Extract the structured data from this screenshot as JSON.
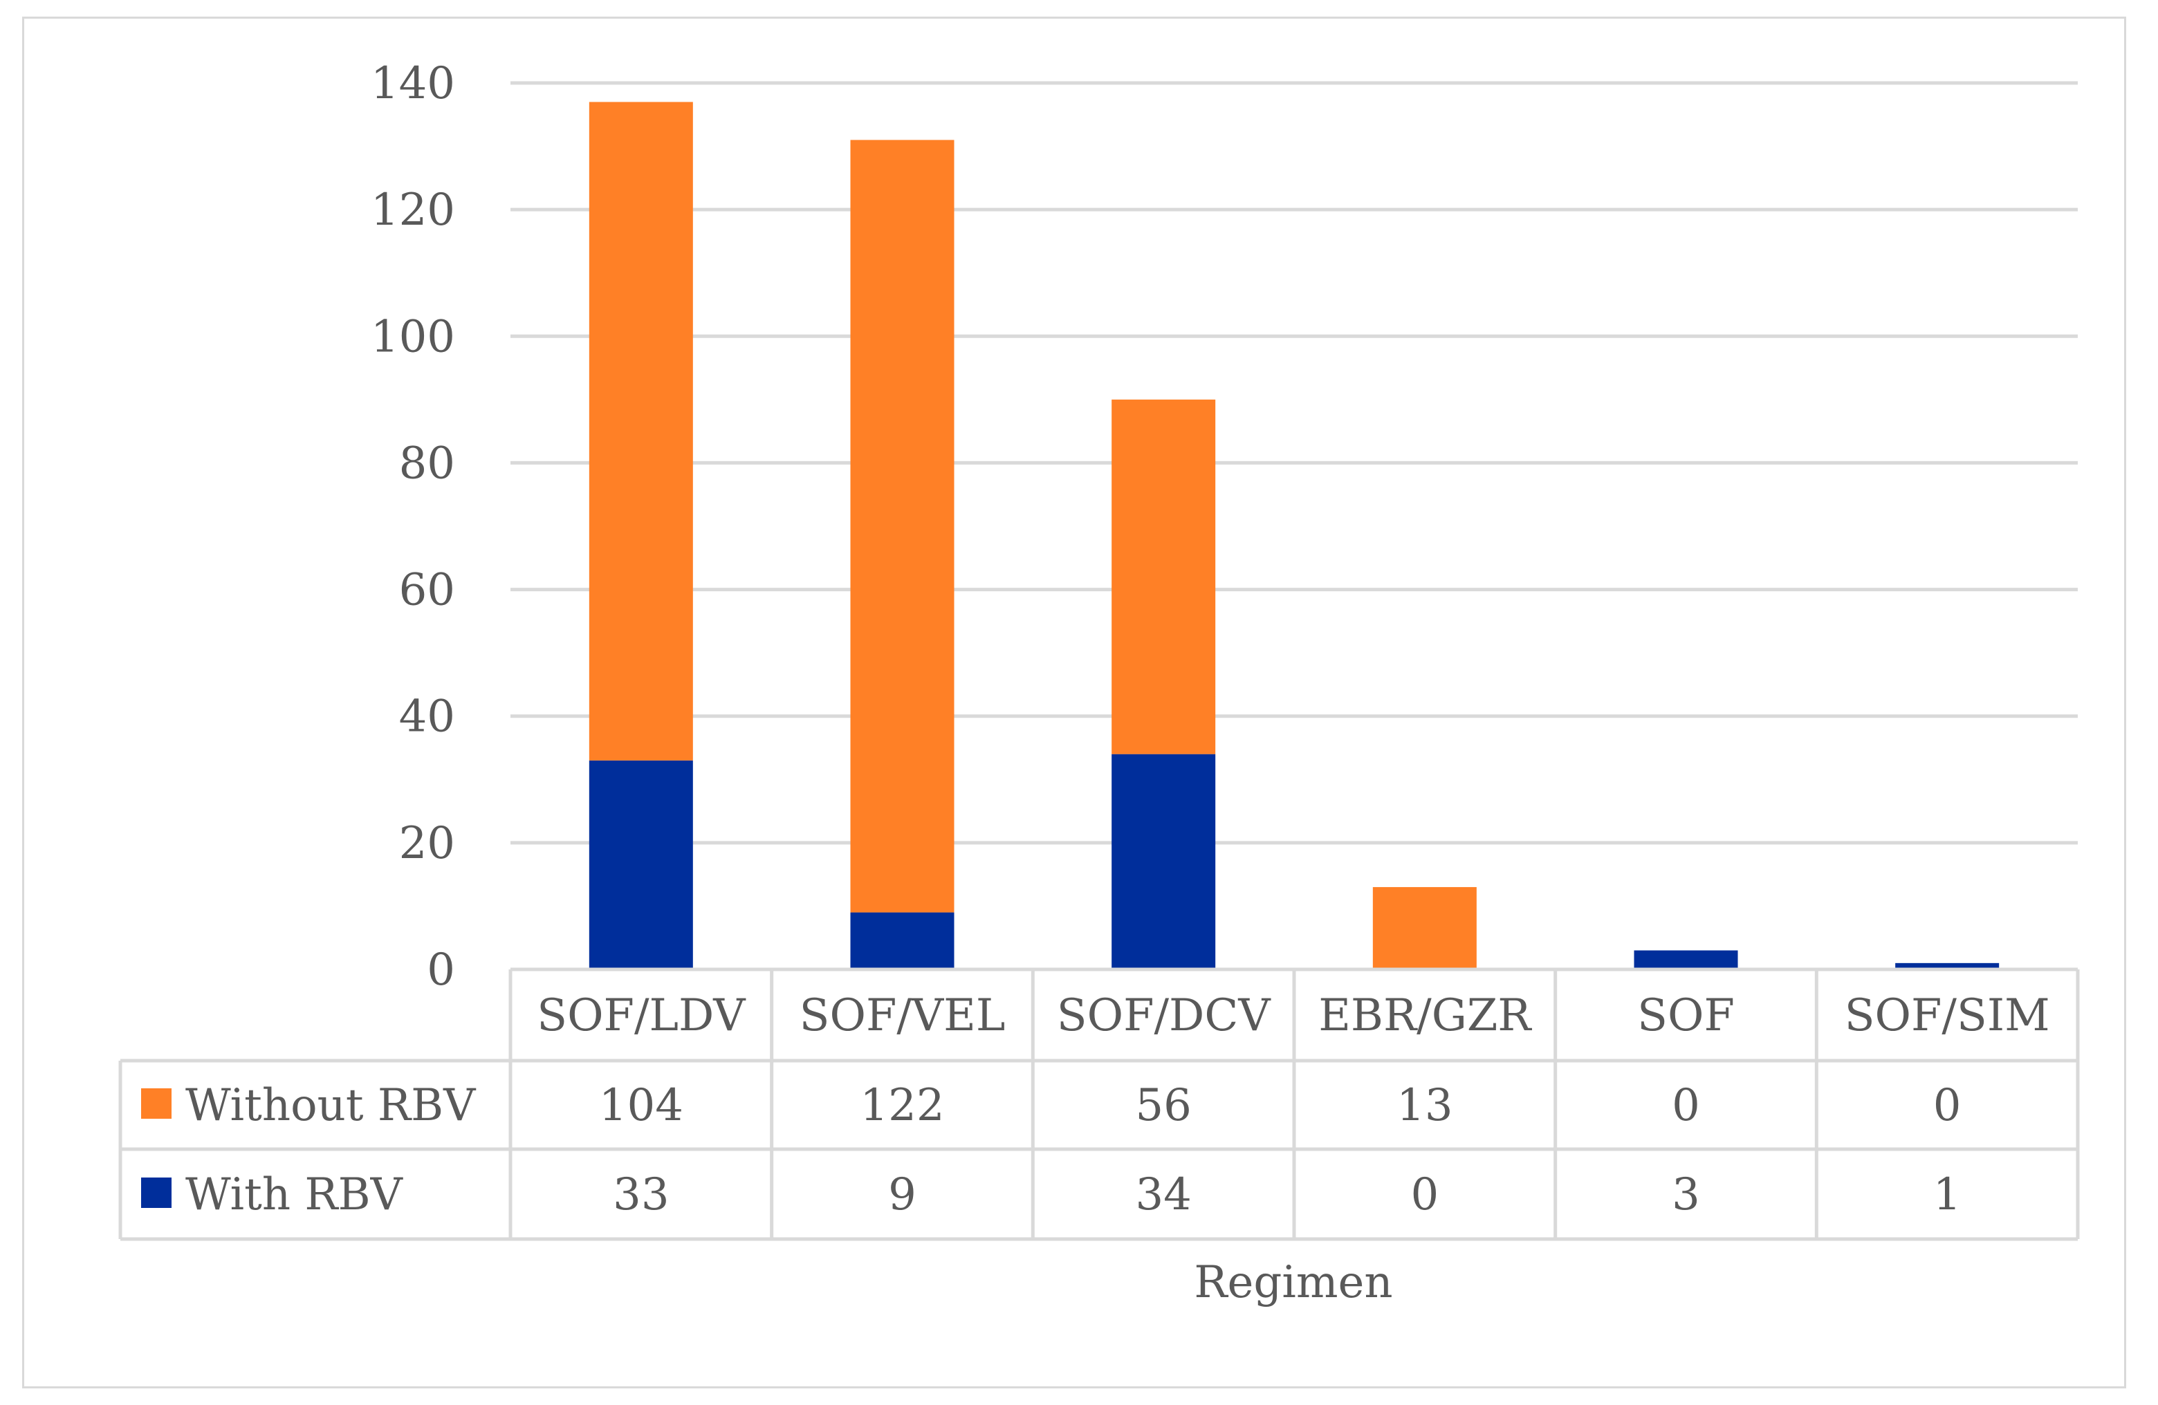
{
  "chart_data": {
    "type": "bar",
    "stacked": true,
    "title": "",
    "xlabel": "Regimen",
    "ylabel": "",
    "ylim": [
      0,
      140
    ],
    "y_ticks": [
      0,
      20,
      40,
      60,
      80,
      100,
      120,
      140
    ],
    "grid": true,
    "legend_placement": "data-table-left",
    "categories": [
      "SOF/LDV",
      "SOF/VEL",
      "SOF/DCV",
      "EBR/GZR",
      "SOF",
      "SOF/SIM"
    ],
    "series": [
      {
        "name": "Without RBV",
        "color": "#ff8026",
        "values": [
          104,
          122,
          56,
          13,
          0,
          0
        ]
      },
      {
        "name": "With RBV",
        "color": "#002e9b",
        "values": [
          33,
          9,
          34,
          0,
          3,
          1
        ]
      }
    ],
    "table_rows": [
      {
        "name": "Without RBV",
        "values": [
          "104",
          "122",
          "56",
          "13",
          "0",
          "0"
        ]
      },
      {
        "name": "With RBV",
        "values": [
          "33",
          "9",
          "34",
          "0",
          "3",
          "1"
        ]
      }
    ],
    "colors": {
      "grid": "#d9d9d9",
      "text": "#595959",
      "frame": "#d9d9d9"
    }
  }
}
